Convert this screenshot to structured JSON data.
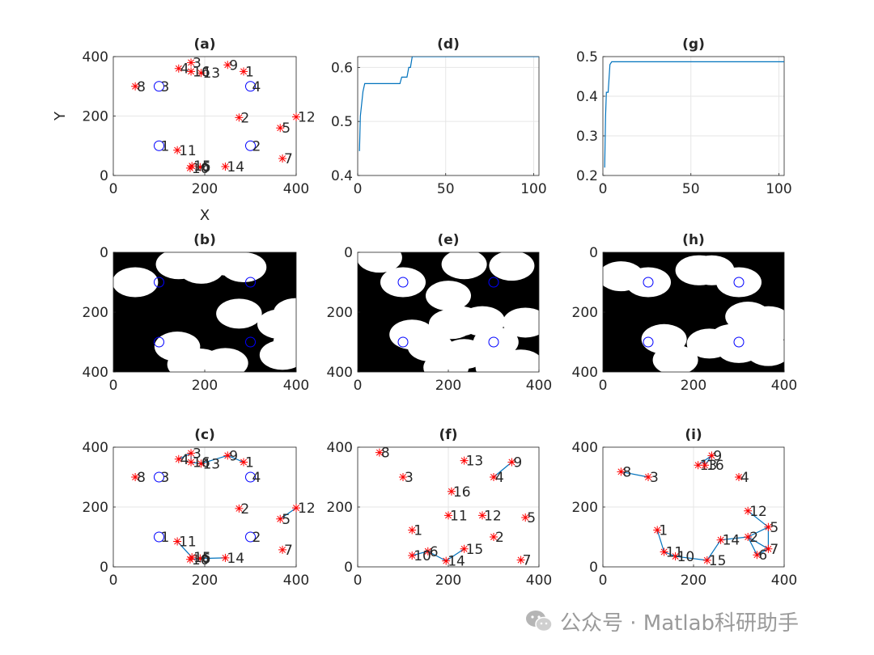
{
  "watermark": {
    "text": "公众号 · Matlab科研助手",
    "icon": "wechat-icon"
  },
  "colors": {
    "axis": "#262626",
    "grid": "#e6e6e6",
    "star": "#ff0000",
    "circle": "#0000ff",
    "line": "#0072bd",
    "white_region": "#ffffff",
    "black_region": "#000000"
  },
  "chart_data": [
    {
      "panel": "a",
      "title": "(a)",
      "type": "scatter",
      "xlabel": "X",
      "ylabel": "Y",
      "xlim": [
        0,
        400
      ],
      "ylim": [
        0,
        400
      ],
      "xticks": [
        "0",
        "200",
        "400"
      ],
      "yticks": [
        "0",
        "200",
        "400"
      ],
      "grid": true,
      "circles": [
        {
          "label": "1",
          "x": 100,
          "y": 100
        },
        {
          "label": "2",
          "x": 300,
          "y": 100
        },
        {
          "label": "3",
          "x": 100,
          "y": 300
        },
        {
          "label": "4",
          "x": 300,
          "y": 300
        }
      ],
      "stars": [
        {
          "label": "1",
          "x": 285,
          "y": 350
        },
        {
          "label": "2",
          "x": 275,
          "y": 195
        },
        {
          "label": "3",
          "x": 170,
          "y": 380
        },
        {
          "label": "4",
          "x": 143,
          "y": 360
        },
        {
          "label": "5",
          "x": 365,
          "y": 160
        },
        {
          "label": "6",
          "x": 190,
          "y": 28
        },
        {
          "label": "7",
          "x": 370,
          "y": 57
        },
        {
          "label": "8",
          "x": 48,
          "y": 300
        },
        {
          "label": "9",
          "x": 250,
          "y": 372
        },
        {
          "label": "10",
          "x": 168,
          "y": 25
        },
        {
          "label": "11",
          "x": 140,
          "y": 85
        },
        {
          "label": "12",
          "x": 400,
          "y": 197
        },
        {
          "label": "13",
          "x": 192,
          "y": 345
        },
        {
          "label": "14",
          "x": 245,
          "y": 30
        },
        {
          "label": "15",
          "x": 172,
          "y": 32
        },
        {
          "label": "16",
          "x": 170,
          "y": 350
        }
      ]
    },
    {
      "panel": "d",
      "title": "(d)",
      "type": "line",
      "xlim": [
        0,
        103
      ],
      "ylim": [
        0.4,
        0.62
      ],
      "xticks": [
        "0",
        "50",
        "100"
      ],
      "yticks": [
        "0.4",
        "0.5",
        "0.6"
      ],
      "grid": true,
      "series": [
        {
          "x": [
            1,
            1.5,
            3,
            4,
            5,
            24,
            25,
            28,
            29,
            30,
            31,
            103
          ],
          "y": [
            0.445,
            0.51,
            0.555,
            0.57,
            0.57,
            0.57,
            0.582,
            0.582,
            0.6,
            0.6,
            0.62,
            0.62
          ]
        }
      ]
    },
    {
      "panel": "g",
      "title": "(g)",
      "type": "line",
      "xlim": [
        0,
        103
      ],
      "ylim": [
        0.2,
        0.5
      ],
      "xticks": [
        "0",
        "50",
        "100"
      ],
      "yticks": [
        "0.2",
        "0.3",
        "0.4",
        "0.5"
      ],
      "grid": true,
      "series": [
        {
          "x": [
            1,
            1.5,
            2,
            3,
            4,
            5,
            6,
            103
          ],
          "y": [
            0.22,
            0.35,
            0.41,
            0.41,
            0.48,
            0.487,
            0.487,
            0.487
          ]
        }
      ]
    },
    {
      "panel": "b",
      "title": "(b)",
      "type": "heatmap",
      "xlim": [
        0,
        400
      ],
      "ylim": [
        400,
        0
      ],
      "xticks": [
        "0",
        "200",
        "400"
      ],
      "yticks": [
        "0",
        "200",
        "400"
      ],
      "grid": false,
      "radius": 50,
      "circles_pos": [
        [
          100,
          100
        ],
        [
          300,
          100
        ],
        [
          100,
          300
        ],
        [
          300,
          300
        ]
      ],
      "disks": [
        [
          48,
          100
        ],
        [
          143,
          40
        ],
        [
          170,
          20
        ],
        [
          192,
          55
        ],
        [
          250,
          28
        ],
        [
          285,
          50
        ],
        [
          275,
          205
        ],
        [
          365,
          240
        ],
        [
          400,
          203
        ],
        [
          140,
          315
        ],
        [
          168,
          375
        ],
        [
          172,
          368
        ],
        [
          190,
          372
        ],
        [
          245,
          370
        ],
        [
          370,
          343
        ],
        [
          400,
          300
        ]
      ]
    },
    {
      "panel": "e",
      "title": "(e)",
      "type": "heatmap",
      "xlim": [
        0,
        400
      ],
      "ylim": [
        400,
        0
      ],
      "xticks": [
        "0",
        "200",
        "400"
      ],
      "yticks": [
        "0",
        "200",
        "400"
      ],
      "grid": false,
      "radius": 50,
      "circles_pos": [
        [
          100,
          100
        ],
        [
          300,
          100
        ],
        [
          100,
          300
        ],
        [
          300,
          300
        ]
      ],
      "disks": [
        [
          48,
          18
        ],
        [
          100,
          100
        ],
        [
          207,
          240
        ],
        [
          235,
          40
        ],
        [
          340,
          45
        ],
        [
          370,
          235
        ],
        [
          200,
          145
        ],
        [
          225,
          230
        ],
        [
          275,
          230
        ],
        [
          305,
          300
        ],
        [
          120,
          275
        ],
        [
          160,
          315
        ],
        [
          235,
          340
        ],
        [
          195,
          385
        ],
        [
          310,
          385
        ],
        [
          360,
          375
        ]
      ]
    },
    {
      "panel": "h",
      "title": "(h)",
      "type": "heatmap",
      "xlim": [
        0,
        400
      ],
      "ylim": [
        400,
        0
      ],
      "xticks": [
        "0",
        "200",
        "400"
      ],
      "yticks": [
        "0",
        "200",
        "400"
      ],
      "grid": false,
      "radius": 50,
      "circles_pos": [
        [
          100,
          100
        ],
        [
          300,
          100
        ],
        [
          100,
          300
        ],
        [
          300,
          300
        ]
      ],
      "disks": [
        [
          40,
          80
        ],
        [
          100,
          100
        ],
        [
          210,
          60
        ],
        [
          240,
          60
        ],
        [
          300,
          100
        ],
        [
          320,
          215
        ],
        [
          365,
          230
        ],
        [
          215,
          60
        ],
        [
          135,
          290
        ],
        [
          160,
          360
        ],
        [
          235,
          305
        ],
        [
          285,
          290
        ],
        [
          300,
          320
        ],
        [
          345,
          275
        ],
        [
          360,
          260
        ],
        [
          365,
          330
        ]
      ]
    },
    {
      "panel": "c",
      "title": "(c)",
      "type": "scatter",
      "xlim": [
        0,
        400
      ],
      "ylim": [
        0,
        400
      ],
      "xticks": [
        "0",
        "200",
        "400"
      ],
      "yticks": [
        "0",
        "200",
        "400"
      ],
      "grid": true,
      "circles": [
        {
          "label": "1",
          "x": 100,
          "y": 100
        },
        {
          "label": "2",
          "x": 300,
          "y": 100
        },
        {
          "label": "3",
          "x": 100,
          "y": 300
        },
        {
          "label": "4",
          "x": 300,
          "y": 300
        }
      ],
      "stars": [
        {
          "label": "1",
          "x": 285,
          "y": 350
        },
        {
          "label": "2",
          "x": 275,
          "y": 195
        },
        {
          "label": "3",
          "x": 170,
          "y": 380
        },
        {
          "label": "4",
          "x": 143,
          "y": 360
        },
        {
          "label": "5",
          "x": 365,
          "y": 160
        },
        {
          "label": "6",
          "x": 190,
          "y": 28
        },
        {
          "label": "7",
          "x": 370,
          "y": 57
        },
        {
          "label": "8",
          "x": 48,
          "y": 300
        },
        {
          "label": "9",
          "x": 250,
          "y": 372
        },
        {
          "label": "10",
          "x": 168,
          "y": 25
        },
        {
          "label": "11",
          "x": 140,
          "y": 85
        },
        {
          "label": "12",
          "x": 400,
          "y": 197
        },
        {
          "label": "13",
          "x": 192,
          "y": 345
        },
        {
          "label": "14",
          "x": 245,
          "y": 30
        },
        {
          "label": "15",
          "x": 172,
          "y": 32
        },
        {
          "label": "16",
          "x": 170,
          "y": 350
        }
      ],
      "edges": [
        [
          4,
          3
        ],
        [
          3,
          16
        ],
        [
          16,
          13
        ],
        [
          13,
          9
        ],
        [
          9,
          1
        ],
        [
          12,
          5
        ],
        [
          11,
          15
        ],
        [
          15,
          10
        ],
        [
          10,
          6
        ],
        [
          6,
          14
        ]
      ]
    },
    {
      "panel": "f",
      "title": "(f)",
      "type": "scatter",
      "xlim": [
        0,
        400
      ],
      "ylim": [
        0,
        400
      ],
      "xticks": [
        "0",
        "200",
        "400"
      ],
      "yticks": [
        "0",
        "200",
        "400"
      ],
      "grid": true,
      "stars": [
        {
          "label": "1",
          "x": 120,
          "y": 123
        },
        {
          "label": "2",
          "x": 300,
          "y": 100
        },
        {
          "label": "3",
          "x": 100,
          "y": 300
        },
        {
          "label": "4",
          "x": 300,
          "y": 300
        },
        {
          "label": "5",
          "x": 370,
          "y": 165
        },
        {
          "label": "6",
          "x": 155,
          "y": 52
        },
        {
          "label": "7",
          "x": 360,
          "y": 23
        },
        {
          "label": "8",
          "x": 48,
          "y": 382
        },
        {
          "label": "9",
          "x": 340,
          "y": 350
        },
        {
          "label": "10",
          "x": 120,
          "y": 38
        },
        {
          "label": "11",
          "x": 200,
          "y": 172
        },
        {
          "label": "12",
          "x": 275,
          "y": 172
        },
        {
          "label": "13",
          "x": 235,
          "y": 355
        },
        {
          "label": "14",
          "x": 195,
          "y": 20
        },
        {
          "label": "15",
          "x": 235,
          "y": 60
        },
        {
          "label": "16",
          "x": 207,
          "y": 252
        }
      ],
      "edges": [
        [
          10,
          6
        ],
        [
          6,
          14
        ],
        [
          14,
          15
        ],
        [
          9,
          4
        ]
      ]
    },
    {
      "panel": "i",
      "title": "(i)",
      "type": "scatter",
      "xlim": [
        0,
        400
      ],
      "ylim": [
        0,
        400
      ],
      "xticks": [
        "0",
        "200",
        "400"
      ],
      "yticks": [
        "0",
        "200",
        "400"
      ],
      "grid": true,
      "stars": [
        {
          "label": "1",
          "x": 120,
          "y": 123
        },
        {
          "label": "2",
          "x": 320,
          "y": 100
        },
        {
          "label": "3",
          "x": 100,
          "y": 300
        },
        {
          "label": "4",
          "x": 300,
          "y": 300
        },
        {
          "label": "5",
          "x": 365,
          "y": 133
        },
        {
          "label": "6",
          "x": 340,
          "y": 40
        },
        {
          "label": "7",
          "x": 365,
          "y": 60
        },
        {
          "label": "8",
          "x": 40,
          "y": 318
        },
        {
          "label": "9",
          "x": 240,
          "y": 372
        },
        {
          "label": "10",
          "x": 160,
          "y": 35
        },
        {
          "label": "11",
          "x": 135,
          "y": 50
        },
        {
          "label": "12",
          "x": 320,
          "y": 187
        },
        {
          "label": "13",
          "x": 210,
          "y": 340
        },
        {
          "label": "14",
          "x": 260,
          "y": 90
        },
        {
          "label": "15",
          "x": 230,
          "y": 22
        },
        {
          "label": "16",
          "x": 225,
          "y": 340
        }
      ],
      "edges": [
        [
          8,
          3
        ],
        [
          13,
          9
        ],
        [
          9,
          16
        ],
        [
          1,
          11
        ],
        [
          11,
          10
        ],
        [
          10,
          15
        ],
        [
          15,
          14
        ],
        [
          14,
          2
        ],
        [
          2,
          5
        ],
        [
          5,
          7
        ],
        [
          7,
          6
        ],
        [
          6,
          2
        ],
        [
          12,
          5
        ],
        [
          2,
          7
        ]
      ]
    }
  ]
}
